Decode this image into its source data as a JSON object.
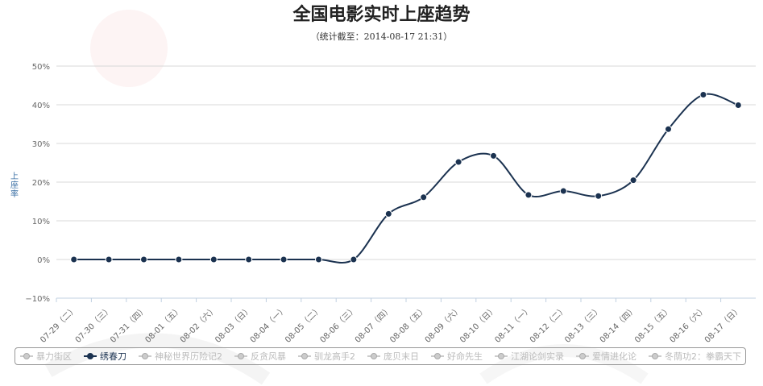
{
  "chart_data": {
    "type": "line",
    "title": "全国电影实时上座趋势",
    "subtitle": "（统计截至：2014-08-17 21:31）",
    "ylabel": "上座率",
    "ylim": [
      -10,
      50
    ],
    "yticks": [
      "−10%",
      "0%",
      "10%",
      "20%",
      "30%",
      "40%",
      "50%"
    ],
    "ytick_values": [
      -10,
      0,
      10,
      20,
      30,
      40,
      50
    ],
    "categories": [
      "07-29（二）",
      "07-30（三）",
      "07-31（四）",
      "08-01（五）",
      "08-02（六）",
      "08-03（日）",
      "08-04（一）",
      "08-05（二）",
      "08-06（三）",
      "08-07（四）",
      "08-08（五）",
      "08-09（六）",
      "08-10（日）",
      "08-11（一）",
      "08-12（二）",
      "08-13（三）",
      "08-14（四）",
      "08-15（五）",
      "08-16（六）",
      "08-17（日）"
    ],
    "series": [
      {
        "name": "绣春刀",
        "values": [
          0,
          0,
          0,
          0,
          0,
          0,
          0,
          0,
          0,
          11.8,
          16.1,
          25.2,
          26.8,
          16.7,
          17.7,
          16.4,
          20.5,
          33.7,
          42.6,
          39.9
        ]
      }
    ],
    "legend": [
      "暴力街区",
      "绣春刀",
      "神秘世界历险记2",
      "反贪风暴",
      "驯龙高手2",
      "庞贝末日",
      "好命先生",
      "江湖论剑实录",
      "爱情进化论",
      "冬荫功2：拳霸天下"
    ],
    "active_series": "绣春刀",
    "grid": true,
    "legend_position": "bottom"
  },
  "colors": {
    "line": "#1b3250",
    "grid": "#d8d8d8",
    "inactive": "#bbbbbb"
  }
}
